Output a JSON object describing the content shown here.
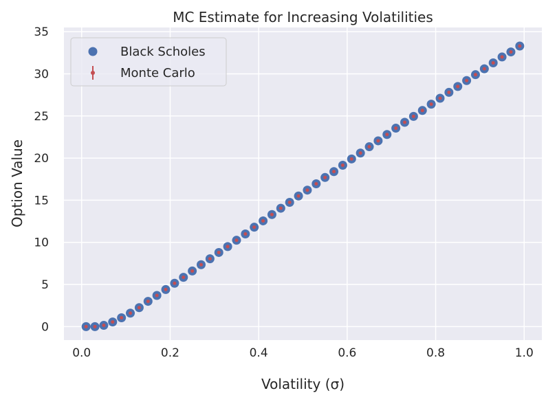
{
  "chart_data": {
    "type": "scatter",
    "title": "MC Estimate for Increasing Volatilities",
    "xlabel": "Volatility (σ)",
    "ylabel": "Option Value",
    "xlim": [
      -0.04,
      1.04
    ],
    "ylim": [
      -1.6,
      35.5
    ],
    "x_ticks": [
      0.0,
      0.2,
      0.4,
      0.6,
      0.8,
      1.0
    ],
    "x_tick_labels": [
      "0.0",
      "0.2",
      "0.4",
      "0.6",
      "0.8",
      "1.0"
    ],
    "y_ticks": [
      0,
      5,
      10,
      15,
      20,
      25,
      30,
      35
    ],
    "y_tick_labels": [
      "0",
      "5",
      "10",
      "15",
      "20",
      "25",
      "30",
      "35"
    ],
    "grid": true,
    "legend_position": "top-left",
    "background": "#eaeaf2",
    "series": [
      {
        "name": "Black Scholes",
        "marker": "circle",
        "color": "#4c72b0",
        "x": [
          0.01,
          0.03,
          0.05,
          0.07,
          0.09,
          0.11,
          0.13,
          0.15,
          0.17,
          0.19,
          0.21,
          0.23,
          0.25,
          0.27,
          0.29,
          0.31,
          0.33,
          0.35,
          0.37,
          0.39,
          0.41,
          0.43,
          0.45,
          0.47,
          0.49,
          0.51,
          0.53,
          0.55,
          0.57,
          0.59,
          0.61,
          0.63,
          0.65,
          0.67,
          0.69,
          0.71,
          0.73,
          0.75,
          0.77,
          0.79,
          0.81,
          0.83,
          0.85,
          0.87,
          0.89,
          0.91,
          0.93,
          0.95,
          0.97,
          0.99
        ],
        "values": [
          0.0,
          0.0,
          0.15,
          0.55,
          1.05,
          1.6,
          2.25,
          3.0,
          3.7,
          4.4,
          5.15,
          5.85,
          6.6,
          7.35,
          8.05,
          8.8,
          9.5,
          10.25,
          11.0,
          11.8,
          12.55,
          13.3,
          14.05,
          14.75,
          15.5,
          16.2,
          16.95,
          17.7,
          18.4,
          19.15,
          19.9,
          20.6,
          21.35,
          22.05,
          22.8,
          23.55,
          24.25,
          24.95,
          25.65,
          26.4,
          27.1,
          27.8,
          28.5,
          29.2,
          29.9,
          30.6,
          31.3,
          32.0,
          32.6,
          33.3
        ]
      },
      {
        "name": "Monte Carlo",
        "marker": "errorbar",
        "color": "#c44e52",
        "x": [
          0.01,
          0.03,
          0.05,
          0.07,
          0.09,
          0.11,
          0.13,
          0.15,
          0.17,
          0.19,
          0.21,
          0.23,
          0.25,
          0.27,
          0.29,
          0.31,
          0.33,
          0.35,
          0.37,
          0.39,
          0.41,
          0.43,
          0.45,
          0.47,
          0.49,
          0.51,
          0.53,
          0.55,
          0.57,
          0.59,
          0.61,
          0.63,
          0.65,
          0.67,
          0.69,
          0.71,
          0.73,
          0.75,
          0.77,
          0.79,
          0.81,
          0.83,
          0.85,
          0.87,
          0.89,
          0.91,
          0.93,
          0.95,
          0.97,
          0.99
        ],
        "values": [
          0.0,
          0.0,
          0.15,
          0.55,
          1.05,
          1.6,
          2.25,
          3.0,
          3.7,
          4.4,
          5.15,
          5.85,
          6.6,
          7.35,
          8.05,
          8.8,
          9.5,
          10.25,
          11.0,
          11.8,
          12.55,
          13.3,
          14.05,
          14.75,
          15.5,
          16.2,
          16.95,
          17.7,
          18.4,
          19.15,
          19.9,
          20.6,
          21.35,
          22.05,
          22.8,
          23.55,
          24.25,
          24.95,
          25.65,
          26.4,
          27.1,
          27.8,
          28.5,
          29.2,
          29.9,
          30.6,
          31.3,
          32.0,
          32.6,
          33.3
        ],
        "error": 0.15
      }
    ]
  }
}
